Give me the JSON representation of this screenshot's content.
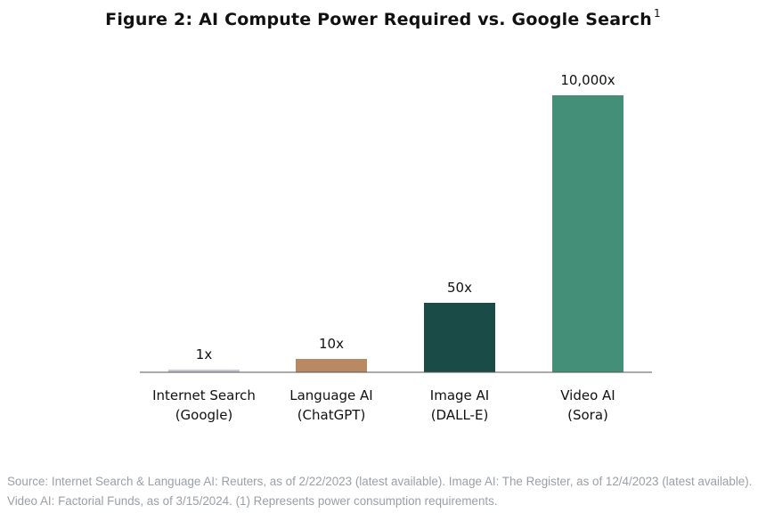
{
  "title": "Figure 2: AI Compute Power Required vs. Google Search",
  "title_superscript": "1",
  "chart_data": {
    "type": "bar",
    "title": "Figure 2: AI Compute Power Required vs. Google Search",
    "categories": [
      [
        "Internet Search",
        "(Google)"
      ],
      [
        "Language AI",
        "(ChatGPT)"
      ],
      [
        "Image AI",
        "(DALL-E)"
      ],
      [
        "Video AI",
        "(Sora)"
      ]
    ],
    "values": [
      1,
      10,
      50,
      10000
    ],
    "data_labels": [
      "1x",
      "10x",
      "50x",
      "10,000x"
    ],
    "colors": [
      "#c7cad6",
      "#b98962",
      "#1b4b47",
      "#448f77"
    ],
    "scale": "non-linear (illustrative bar heights)",
    "grid": false,
    "legend": "none"
  },
  "source_note": "Source: Internet Search & Language AI: Reuters, as of 2/22/2023 (latest available). Image AI: The Register, as of 12/4/2023 (latest available). Video AI: Factorial Funds, as of 3/15/2024. (1) Represents power consumption requirements."
}
